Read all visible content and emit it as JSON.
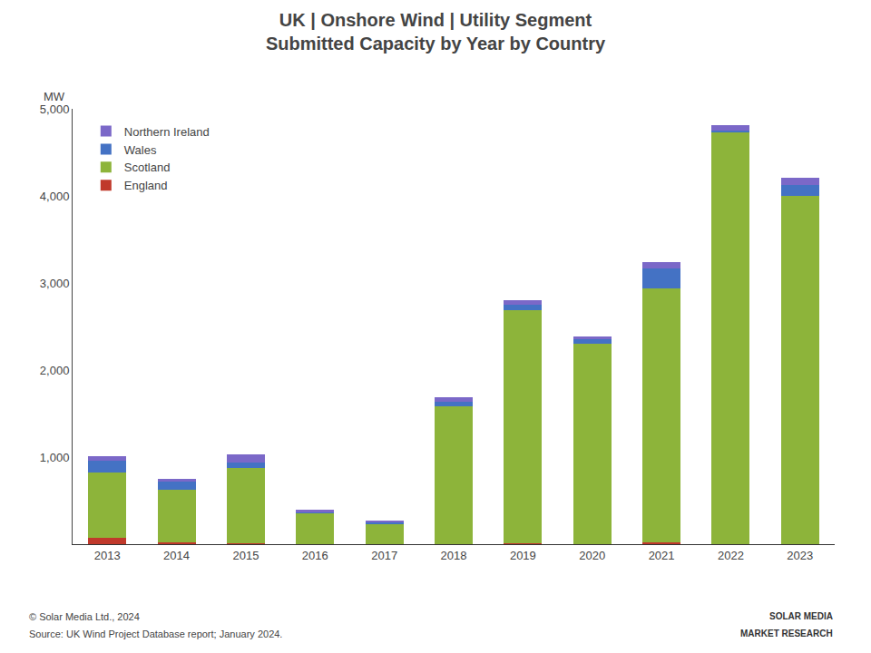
{
  "chart_data": {
    "type": "bar",
    "stacked": true,
    "title": "UK | Onshore Wind | Utility Segment",
    "subtitle": "Submitted Capacity by Year by Country",
    "ylabel": "MW",
    "categories": [
      "2013",
      "2014",
      "2015",
      "2016",
      "2017",
      "2018",
      "2019",
      "2020",
      "2021",
      "2022",
      "2023"
    ],
    "series": [
      {
        "name": "England",
        "color": "#c0392b",
        "values": [
          75,
          20,
          10,
          5,
          5,
          5,
          10,
          5,
          20,
          5,
          5
        ]
      },
      {
        "name": "Scotland",
        "color": "#8db43a",
        "values": [
          750,
          610,
          870,
          350,
          230,
          1580,
          2680,
          2300,
          2920,
          4720,
          4000
        ]
      },
      {
        "name": "Wales",
        "color": "#4472c4",
        "values": [
          130,
          90,
          60,
          10,
          10,
          50,
          60,
          50,
          230,
          30,
          120
        ]
      },
      {
        "name": "Northern Ireland",
        "color": "#7b68c8",
        "values": [
          55,
          30,
          95,
          35,
          25,
          50,
          50,
          30,
          70,
          55,
          80
        ]
      }
    ],
    "ylim": [
      0,
      5000
    ],
    "yticks": [
      {
        "value": 1000,
        "label": "1,000"
      },
      {
        "value": 2000,
        "label": "2,000"
      },
      {
        "value": 3000,
        "label": "3,000"
      },
      {
        "value": 4000,
        "label": "4,000"
      },
      {
        "value": 5000,
        "label": "5,000"
      }
    ],
    "grid": false,
    "legend": "upper left",
    "annotations": [
      "© Solar Media Ltd., 2024",
      "Source: UK Wind Project Database report; January 2024.",
      "SOLAR MEDIA",
      "MARKET RESEARCH"
    ]
  }
}
